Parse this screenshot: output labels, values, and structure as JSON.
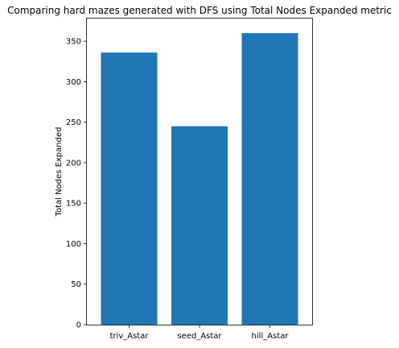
{
  "chart_data": {
    "type": "bar",
    "title": "Comparing hard mazes generated with DFS using Total Nodes Expanded metric",
    "xlabel": "",
    "ylabel": "Total Nodes Expanded",
    "categories": [
      "triv_Astar",
      "seed_Astar",
      "hill_Astar"
    ],
    "values": [
      336,
      245,
      360
    ],
    "ylim": [
      0,
      378
    ],
    "yticks": [
      0,
      50,
      100,
      150,
      200,
      250,
      300,
      350
    ],
    "grid": false,
    "bar_color": "#1f77b4"
  }
}
